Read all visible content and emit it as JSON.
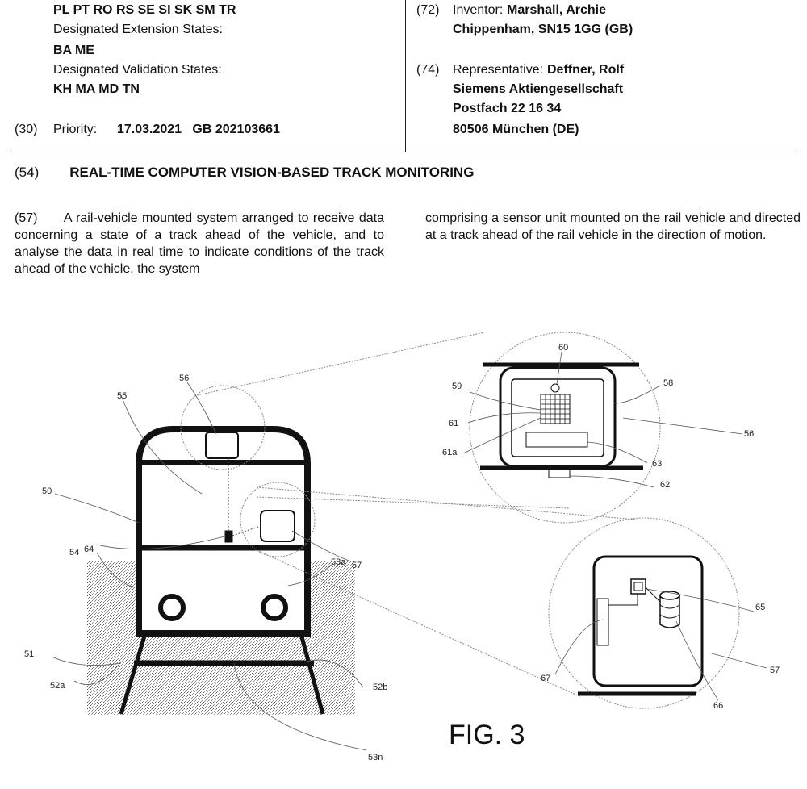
{
  "header_left": {
    "line1": "PL PT RO RS SE SI SK SM TR",
    "ext_label": "Designated Extension States:",
    "ext_values": "BA ME",
    "val_label": "Designated Validation States:",
    "val_values": "KH MA MD TN",
    "priority_code": "(30)",
    "priority_label": "Priority:",
    "priority_value": "17.03.2021   GB 202103661"
  },
  "header_right": {
    "inventor_code": "(72)",
    "inventor_label": "Inventor:",
    "inventor_name": "Marshall, Archie",
    "inventor_address": "Chippenham, SN15 1GG (GB)",
    "rep_code": "(74)",
    "rep_label": "Representative:",
    "rep_name": "Deffner, Rolf",
    "rep_company": "Siemens Aktiengesellschaft",
    "rep_street": "Postfach 22 16 34",
    "rep_city": "80506 München (DE)"
  },
  "title": {
    "code": "(54)",
    "text": "REAL-TIME COMPUTER VISION-BASED TRACK MONITORING"
  },
  "abstract": {
    "code": "(57)",
    "col1": "A rail-vehicle mounted system arranged to receive data concerning a state of a track ahead of the vehicle, and to analyse the data in real time to indicate conditions of the track ahead of the vehicle, the system",
    "col2": "comprising a sensor unit mounted on the rail vehicle and directed at a track ahead of the rail vehicle in the direction of motion."
  },
  "figure": {
    "caption": "FIG. 3",
    "labels": {
      "l50": "50",
      "l51": "51",
      "l52a": "52a",
      "l52b": "52b",
      "l53a": "53a",
      "l53n": "53n",
      "l54": "54",
      "l55": "55",
      "l56": "56",
      "l56b": "56",
      "l57": "57",
      "l57b": "57",
      "l58": "58",
      "l59": "59",
      "l60": "60",
      "l61": "61",
      "l61a": "61a",
      "l62": "62",
      "l63": "63",
      "l64": "64",
      "l65": "65",
      "l66": "66",
      "l67": "67"
    }
  }
}
